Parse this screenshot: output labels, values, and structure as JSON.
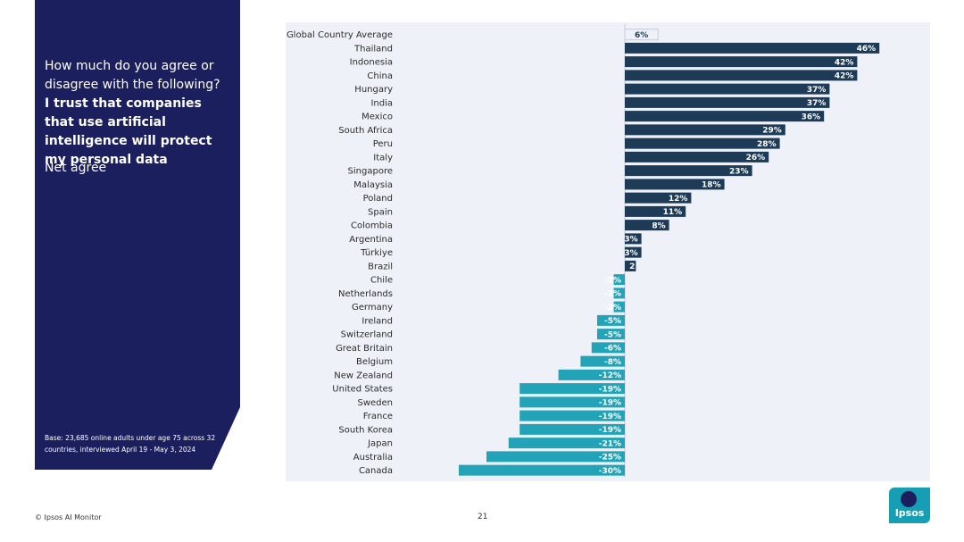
{
  "panel": {
    "question": "How much do you agree or disagree with the following?",
    "statement": "I trust that companies that use artificial intelligence will protect my personal data",
    "metric": "Net agree",
    "base_note": "Base: 23,685 online adults under age 75 across 32 countries, interviewed April 19 - May 3, 2024"
  },
  "footer": {
    "source": "© Ipsos AI Monitor",
    "page": "21",
    "logo_text": "Ipsos"
  },
  "colors": {
    "panel": "#1b1f5e",
    "positive_bar": "#1d3a57",
    "negative_bar": "#22a3b8",
    "chart_background": "#eef1f7"
  },
  "chart_data": {
    "type": "bar",
    "orientation": "horizontal",
    "title": "",
    "xlabel": "",
    "ylabel": "",
    "value_suffix": "%",
    "xlim": [
      -30,
      46
    ],
    "categories": [
      "Global Country Average",
      "Thailand",
      "Indonesia",
      "China",
      "Hungary",
      "India",
      "Mexico",
      "South Africa",
      "Peru",
      "Italy",
      "Singapore",
      "Malaysia",
      "Poland",
      "Spain",
      "Colombia",
      "Argentina",
      "Türkiye",
      "Brazil",
      "Chile",
      "Netherlands",
      "Germany",
      "Ireland",
      "Switzerland",
      "Great Britain",
      "Belgium",
      "New Zealand",
      "United States",
      "Sweden",
      "France",
      "South Korea",
      "Japan",
      "Australia",
      "Canada"
    ],
    "values": [
      6,
      46,
      42,
      42,
      37,
      37,
      36,
      29,
      28,
      26,
      23,
      18,
      12,
      11,
      8,
      3,
      3,
      2,
      -2,
      -2,
      -2,
      -5,
      -5,
      -6,
      -8,
      -12,
      -19,
      -19,
      -19,
      -19,
      -21,
      -25,
      -30
    ],
    "labels": [
      "6%",
      "46%",
      "42%",
      "42%",
      "37%",
      "37%",
      "36%",
      "29%",
      "28%",
      "26%",
      "23%",
      "18%",
      "12%",
      "11%",
      "8%",
      "3%",
      "3%",
      "2",
      "-2%",
      "-2%",
      "-2%",
      "-5%",
      "-5%",
      "-6%",
      "-8%",
      "-12%",
      "-19%",
      "-19%",
      "-19%",
      "-19%",
      "-21%",
      "-25%",
      "-30%"
    ],
    "highlight": "Global Country Average"
  }
}
